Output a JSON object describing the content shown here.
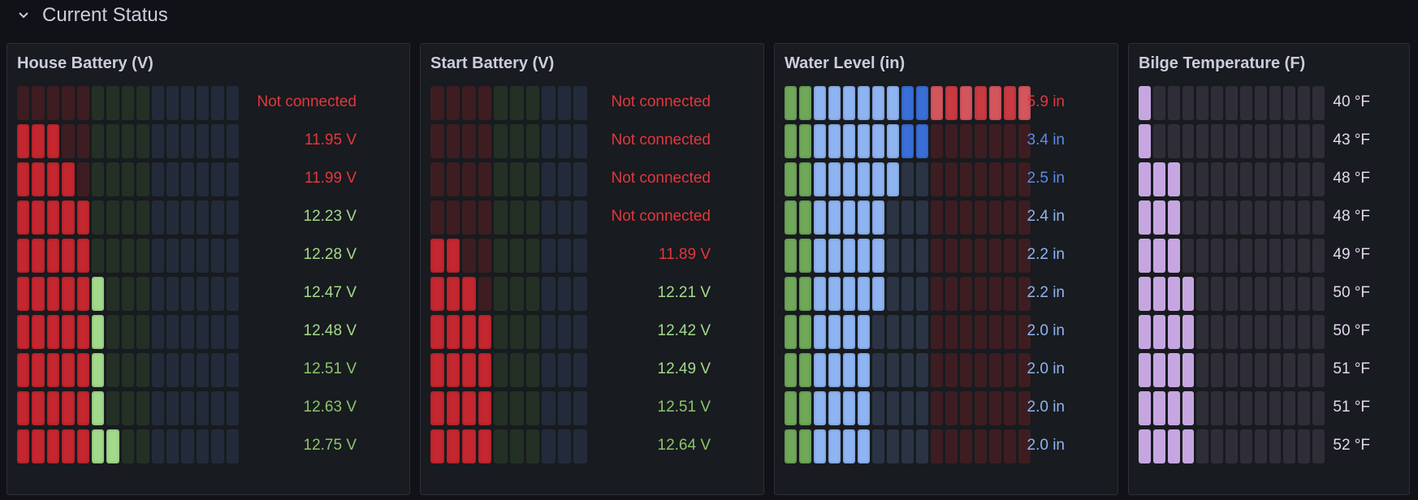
{
  "row": {
    "title": "Current Status"
  },
  "colors": {
    "red_on": "#c4272f",
    "red_off": "#3d1d21",
    "green_on": "#a3d98b",
    "green_off": "#243026",
    "green_dark_on": "#70a85a",
    "blue_off": "#232b3b",
    "wblue_on": "#8fb4f2",
    "wblue_dark": "#3a6ed8",
    "wblue_off": "#2a3444",
    "purple_on": "#c6a6e0",
    "purple_off": "#2f2e38",
    "text_red": "#e0383e",
    "text_green": "#a3d98b",
    "text_green2": "#8cc56c",
    "text_blue": "#8fb4f2",
    "text_blue_dark": "#5b8ce8",
    "text_purple": "#e5d8f0"
  },
  "panels": [
    {
      "title": "House Battery (V)",
      "rows": [
        {
          "value": "Not connected",
          "fraction": 0.0,
          "color": "text_red",
          "dim": true
        },
        {
          "value": "11.95 V",
          "fraction": 0.19,
          "color": "text_red"
        },
        {
          "value": "11.99 V",
          "fraction": 0.24,
          "color": "text_red"
        },
        {
          "value": "12.23 V",
          "fraction": 0.33,
          "color": "text_green"
        },
        {
          "value": "12.28 V",
          "fraction": 0.33,
          "color": "text_green"
        },
        {
          "value": "12.47 V",
          "fraction": 0.4,
          "color": "text_green"
        },
        {
          "value": "12.48 V",
          "fraction": 0.4,
          "color": "text_green"
        },
        {
          "value": "12.51 V",
          "fraction": 0.4,
          "color": "text_green2"
        },
        {
          "value": "12.63 V",
          "fraction": 0.4,
          "color": "text_green2"
        },
        {
          "value": "12.75 V",
          "fraction": 0.48,
          "color": "text_green2"
        }
      ]
    },
    {
      "title": "Start Battery (V)",
      "rows": [
        {
          "value": "Not connected",
          "fraction": 0.0,
          "color": "text_red",
          "dim": true
        },
        {
          "value": "Not connected",
          "fraction": 0.0,
          "color": "text_red",
          "dim": true
        },
        {
          "value": "Not connected",
          "fraction": 0.0,
          "color": "text_red",
          "dim": true
        },
        {
          "value": "Not connected",
          "fraction": 0.0,
          "color": "text_red",
          "dim": true
        },
        {
          "value": "11.89 V",
          "fraction": 0.17,
          "color": "text_red"
        },
        {
          "value": "12.21 V",
          "fraction": 0.27,
          "color": "text_green"
        },
        {
          "value": "12.42 V",
          "fraction": 0.36,
          "color": "text_green"
        },
        {
          "value": "12.49 V",
          "fraction": 0.36,
          "color": "text_green"
        },
        {
          "value": "12.51 V",
          "fraction": 0.36,
          "color": "text_green2"
        },
        {
          "value": "12.64 V",
          "fraction": 0.36,
          "color": "text_green2"
        }
      ]
    },
    {
      "title": "Water Level (in)",
      "rows": [
        {
          "value": "5.9 in",
          "fraction": 1.0,
          "color": "text_red"
        },
        {
          "value": "3.4 in",
          "fraction": 0.59,
          "color": "text_blue_dark"
        },
        {
          "value": "2.5 in",
          "fraction": 0.47,
          "color": "text_blue_dark"
        },
        {
          "value": "2.4 in",
          "fraction": 0.41,
          "color": "text_blue"
        },
        {
          "value": "2.2 in",
          "fraction": 0.41,
          "color": "text_blue"
        },
        {
          "value": "2.2 in",
          "fraction": 0.41,
          "color": "text_blue"
        },
        {
          "value": "2.0 in",
          "fraction": 0.35,
          "color": "text_blue"
        },
        {
          "value": "2.0 in",
          "fraction": 0.35,
          "color": "text_blue"
        },
        {
          "value": "2.0 in",
          "fraction": 0.35,
          "color": "text_blue"
        },
        {
          "value": "2.0 in",
          "fraction": 0.35,
          "color": "text_blue"
        }
      ]
    },
    {
      "title": "Bilge Temperature (F)",
      "rows": [
        {
          "value": "40 °F",
          "fraction": 0.08,
          "color": "text_purple"
        },
        {
          "value": "43 °F",
          "fraction": 0.08,
          "color": "text_purple"
        },
        {
          "value": "48 °F",
          "fraction": 0.23,
          "color": "text_purple"
        },
        {
          "value": "48 °F",
          "fraction": 0.23,
          "color": "text_purple"
        },
        {
          "value": "49 °F",
          "fraction": 0.23,
          "color": "text_purple"
        },
        {
          "value": "50 °F",
          "fraction": 0.31,
          "color": "text_purple"
        },
        {
          "value": "50 °F",
          "fraction": 0.31,
          "color": "text_purple"
        },
        {
          "value": "51 °F",
          "fraction": 0.31,
          "color": "text_purple"
        },
        {
          "value": "51 °F",
          "fraction": 0.31,
          "color": "text_purple"
        },
        {
          "value": "52 °F",
          "fraction": 0.31,
          "color": "text_purple"
        }
      ]
    }
  ]
}
